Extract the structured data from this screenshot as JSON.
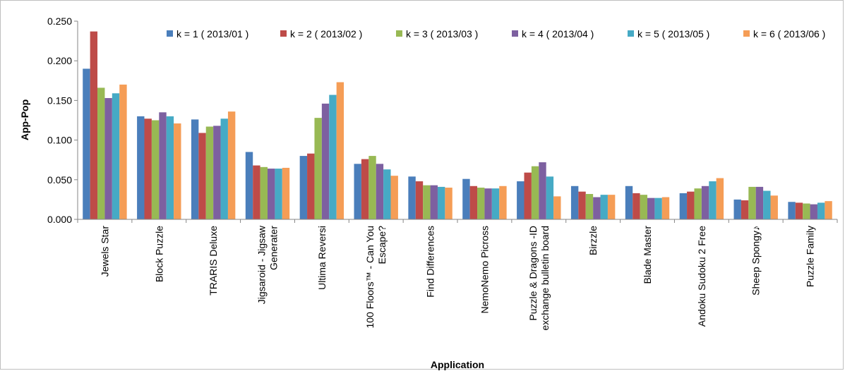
{
  "chart_data": {
    "type": "bar",
    "xlabel": "Application",
    "ylabel": "App-Pop",
    "ylim": [
      0,
      0.25
    ],
    "yticks": [
      "0.000",
      "0.050",
      "0.100",
      "0.150",
      "0.200",
      "0.250"
    ],
    "grid": false,
    "legend_position": "top-right",
    "categories": [
      [
        "Jewels Star"
      ],
      [
        "Block Puzzle"
      ],
      [
        "TRARIS Deluxe"
      ],
      [
        "Jigsaroid - Jigsaw",
        "Generater"
      ],
      [
        "Ultima Reversi"
      ],
      [
        "100 Floors™ - Can You",
        "Escape?"
      ],
      [
        "Find Differences"
      ],
      [
        "NemoNemo Picross"
      ],
      [
        "Puzzle & Dragons -ID",
        "exchange bulletin board"
      ],
      [
        "Birzzle"
      ],
      [
        "Blade Master"
      ],
      [
        "Andoku Sudoku 2 Free"
      ],
      [
        "Sheep Spongy♪"
      ],
      [
        "Puzzle Family"
      ]
    ],
    "series": [
      {
        "name": "k = 1 ( 2013/01 )",
        "color": "#4a7ebb",
        "values": [
          0.19,
          0.13,
          0.126,
          0.085,
          0.08,
          0.07,
          0.054,
          0.051,
          0.048,
          0.042,
          0.042,
          0.033,
          0.025,
          0.022
        ]
      },
      {
        "name": "k = 2 ( 2013/02 )",
        "color": "#be4b48",
        "values": [
          0.237,
          0.127,
          0.109,
          0.068,
          0.083,
          0.076,
          0.048,
          0.042,
          0.059,
          0.035,
          0.033,
          0.035,
          0.024,
          0.021
        ]
      },
      {
        "name": "k = 3 ( 2013/03 )",
        "color": "#98b954",
        "values": [
          0.166,
          0.125,
          0.117,
          0.066,
          0.128,
          0.08,
          0.043,
          0.04,
          0.067,
          0.032,
          0.031,
          0.039,
          0.041,
          0.02
        ]
      },
      {
        "name": "k = 4 ( 2013/04 )",
        "color": "#7d60a0",
        "values": [
          0.153,
          0.135,
          0.118,
          0.064,
          0.146,
          0.07,
          0.043,
          0.039,
          0.072,
          0.028,
          0.027,
          0.042,
          0.041,
          0.019
        ]
      },
      {
        "name": "k = 5 ( 2013/05 )",
        "color": "#46aac5",
        "values": [
          0.159,
          0.13,
          0.127,
          0.064,
          0.157,
          0.063,
          0.041,
          0.039,
          0.054,
          0.031,
          0.027,
          0.048,
          0.036,
          0.021
        ]
      },
      {
        "name": "k = 6 ( 2013/06 )",
        "color": "#f59d56",
        "values": [
          0.17,
          0.121,
          0.136,
          0.065,
          0.173,
          0.055,
          0.04,
          0.042,
          0.029,
          0.031,
          0.028,
          0.052,
          0.03,
          0.023
        ]
      }
    ]
  }
}
